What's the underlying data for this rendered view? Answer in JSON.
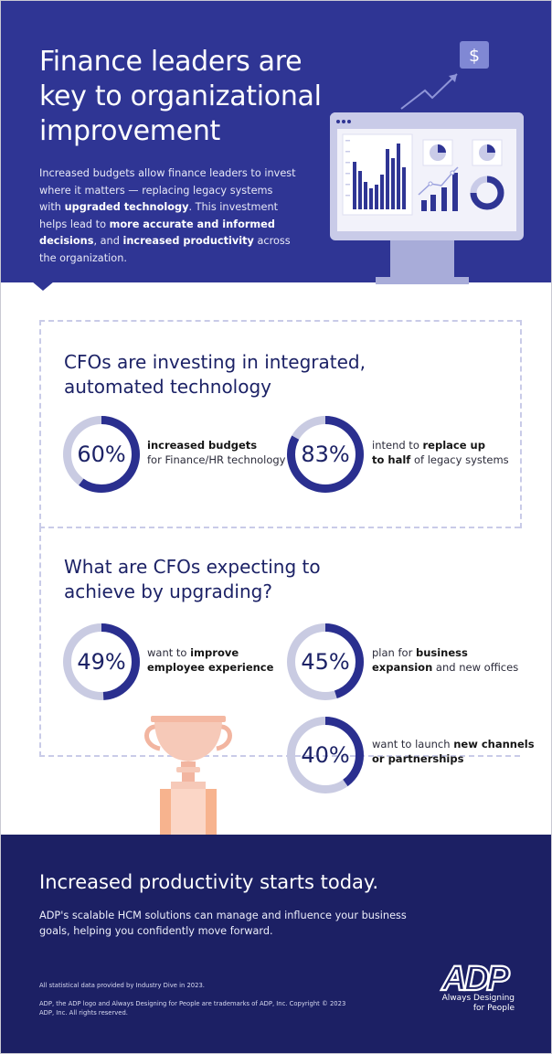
{
  "hero": {
    "title": "Finance leaders are key to organizational improvement",
    "body": [
      {
        "text": "Increased budgets allow finance leaders to invest where it matters — replacing legacy systems with ",
        "bold": false
      },
      {
        "text": "upgraded technology",
        "bold": true
      },
      {
        "text": ". This investment helps lead to ",
        "bold": false
      },
      {
        "text": "more accurate and informed decisions",
        "bold": true
      },
      {
        "text": ", and ",
        "bold": false
      },
      {
        "text": "increased productivity",
        "bold": true
      },
      {
        "text": " across the organization.",
        "bold": false
      }
    ],
    "dollar_symbol": "$"
  },
  "section1": {
    "title": "CFOs are investing in integrated, automated technology",
    "stats": [
      {
        "value": 60,
        "label": "60%",
        "desc": [
          {
            "text": "increased budgets",
            "bold": true,
            "br": true
          },
          {
            "text": "for Finance/HR technology",
            "bold": false
          }
        ]
      },
      {
        "value": 83,
        "label": "83%",
        "desc": [
          {
            "text": "intend to ",
            "bold": false
          },
          {
            "text": "replace up",
            "bold": true,
            "br": true
          },
          {
            "text": "to half",
            "bold": true
          },
          {
            "text": " of legacy systems",
            "bold": false
          }
        ]
      }
    ]
  },
  "section2": {
    "title": "What are CFOs expecting to achieve by upgrading?",
    "stats": [
      {
        "value": 49,
        "label": "49%",
        "desc": [
          {
            "text": "want to ",
            "bold": false
          },
          {
            "text": "improve",
            "bold": true,
            "br": true
          },
          {
            "text": "employee experience",
            "bold": true
          }
        ]
      },
      {
        "value": 45,
        "label": "45%",
        "desc": [
          {
            "text": "plan for ",
            "bold": false
          },
          {
            "text": "business",
            "bold": true,
            "br": true
          },
          {
            "text": "expansion",
            "bold": true
          },
          {
            "text": " and new offices",
            "bold": false
          }
        ]
      },
      {
        "value": 40,
        "label": "40%",
        "desc": [
          {
            "text": "want to launch ",
            "bold": false
          },
          {
            "text": "new channels",
            "bold": true,
            "br": true
          },
          {
            "text": "or partnerships",
            "bold": true
          }
        ]
      }
    ]
  },
  "footer": {
    "title": "Increased productivity starts today.",
    "body": "ADP's scalable HCM solutions can manage and influence your business goals, helping you confidently move forward.",
    "note": "All statistical data provided by Industry Dive in 2023.",
    "legal": "ADP, the ADP logo and Always Designing for People are trademarks of ADP, Inc. Copyright © 2023 ADP, Inc. All rights reserved.",
    "logo_text": "ADP",
    "tagline_line1": "Always Designing",
    "tagline_line2": "for People"
  },
  "colors": {
    "hero_bg": "#2f3594",
    "footer_bg": "#1c2064",
    "ring_fill": "#2a2f8f",
    "ring_track": "#c9cbe2",
    "title_text": "#1c2266"
  }
}
